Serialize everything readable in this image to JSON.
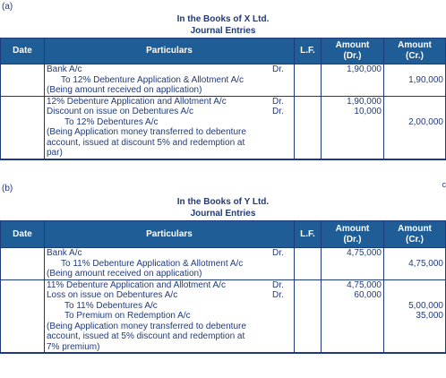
{
  "sections": [
    {
      "label": "(a)",
      "book_title": "In the Books of X Ltd.",
      "journal_title": "Journal Entries",
      "headers": {
        "date": "Date",
        "particulars": "Particulars",
        "lf": "L.F.",
        "amount_dr": [
          "Amount",
          "(Dr.)"
        ],
        "amount_cr": [
          "Amount",
          "(Cr.)"
        ]
      },
      "entries": [
        {
          "lines": [
            {
              "text": "Bank A/c",
              "indent": 0,
              "dr": "Dr.",
              "amount_dr": "1,90,000",
              "amount_cr": ""
            },
            {
              "text": "To 12% Debenture Application & Allotment A/c",
              "indent": 1,
              "dr": "",
              "amount_dr": "",
              "amount_cr": "1,90,000"
            },
            {
              "text": "(Being amount received on application)",
              "indent": 0,
              "dr": "",
              "amount_dr": "",
              "amount_cr": ""
            }
          ]
        },
        {
          "lines": [
            {
              "text": "12% Debenture Application and Allotment A/c",
              "indent": 0,
              "dr": "Dr.",
              "amount_dr": "1,90,000",
              "amount_cr": ""
            },
            {
              "text": "Discount on issue on Debentures A/c",
              "indent": 0,
              "dr": "Dr.",
              "amount_dr": "10,000",
              "amount_cr": ""
            },
            {
              "text": "To 12% Debentures A/c",
              "indent": 2,
              "dr": "",
              "amount_dr": "",
              "amount_cr": "2,00,000"
            },
            {
              "text": "(Being Application money transferred to debenture",
              "indent": 0,
              "dr": "",
              "amount_dr": "",
              "amount_cr": ""
            },
            {
              "text": "account, issued at discount 5% and redemption at",
              "indent": 0,
              "dr": "",
              "amount_dr": "",
              "amount_cr": ""
            },
            {
              "text": "par)",
              "indent": 0,
              "dr": "",
              "amount_dr": "",
              "amount_cr": ""
            }
          ]
        }
      ]
    },
    {
      "label": "(b)",
      "book_title": "In the Books of Y Ltd.",
      "journal_title": "Journal Entries",
      "headers": {
        "date": "Date",
        "particulars": "Particulars",
        "lf": "L.F.",
        "amount_dr": [
          "Amount",
          "(Dr.)"
        ],
        "amount_cr": [
          "Amount",
          "(Cr.)"
        ]
      },
      "entries": [
        {
          "lines": [
            {
              "text": "Bank A/c",
              "indent": 0,
              "dr": "Dr.",
              "amount_dr": "4,75,000",
              "amount_cr": ""
            },
            {
              "text": "To 11% Debenture Application & Allotment A/c",
              "indent": 1,
              "dr": "",
              "amount_dr": "",
              "amount_cr": "4,75,000"
            },
            {
              "text": "(Being amount received on application)",
              "indent": 0,
              "dr": "",
              "amount_dr": "",
              "amount_cr": ""
            }
          ]
        },
        {
          "lines": [
            {
              "text": "11% Debenture Application and Allotment A/c",
              "indent": 0,
              "dr": "Dr.",
              "amount_dr": "4,75,000",
              "amount_cr": ""
            },
            {
              "text": "Loss on issue on Debentures A/c",
              "indent": 0,
              "dr": "Dr.",
              "amount_dr": "60,000",
              "amount_cr": ""
            },
            {
              "text": "To 11% Debentures A/c",
              "indent": 2,
              "dr": "",
              "amount_dr": "",
              "amount_cr": "5,00,000"
            },
            {
              "text": "To Premium on Redemption A/c",
              "indent": 2,
              "dr": "",
              "amount_dr": "",
              "amount_cr": "35,000"
            },
            {
              "text": "(Being Application money transferred to debenture",
              "indent": 0,
              "dr": "",
              "amount_dr": "",
              "amount_cr": ""
            },
            {
              "text": "account, issued at 5% discount and redemption at",
              "indent": 0,
              "dr": "",
              "amount_dr": "",
              "amount_cr": ""
            },
            {
              "text": "7% premium)",
              "indent": 0,
              "dr": "",
              "amount_dr": "",
              "amount_cr": ""
            }
          ]
        }
      ]
    }
  ],
  "edge_mark": "c"
}
